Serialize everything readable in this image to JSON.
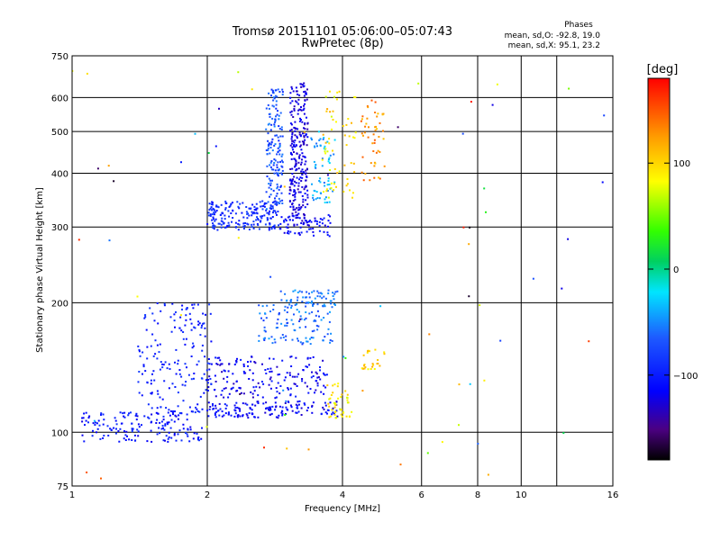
{
  "chart_data": {
    "type": "scatter",
    "title": "Tromsø 20151101 05:06:00–05:07:43",
    "subtitle": "RwPretec (8p)",
    "xlabel": "Frequency [MHz]",
    "ylabel": "Stationary phase Virtual Height [km]",
    "x_scale": "log",
    "y_scale": "log",
    "xlim": [
      1,
      16
    ],
    "ylim": [
      75,
      750
    ],
    "x_ticks": [
      1,
      2,
      4,
      6,
      8,
      10,
      16
    ],
    "x_grid_extra": [
      12
    ],
    "y_ticks": [
      75,
      100,
      200,
      300,
      400,
      500,
      600,
      750
    ],
    "grid": true,
    "stats": {
      "heading": "Phases",
      "line_o": "mean, sd,O:  -92.8, 19.0",
      "line_x": "mean, sd,X:   95.1, 23.2"
    },
    "colorbar": {
      "label": "[deg]",
      "min": -180,
      "max": 180,
      "ticks": [
        {
          "value": 100,
          "label": "100"
        },
        {
          "value": 0,
          "label": "0"
        },
        {
          "value": -100,
          "label": "−100"
        }
      ]
    },
    "point_clusters": [
      {
        "freq": [
          1.05,
          1.95
        ],
        "height": [
          95,
          112
        ],
        "phase": [
          -125,
          -85
        ],
        "n": 160
      },
      {
        "freq": [
          1.4,
          2.05
        ],
        "height": [
          110,
          200
        ],
        "phase": [
          -115,
          -80
        ],
        "n": 180
      },
      {
        "freq": [
          2.0,
          3.9
        ],
        "height": [
          108,
          118
        ],
        "phase": [
          -130,
          -95
        ],
        "n": 150
      },
      {
        "freq": [
          2.0,
          3.7
        ],
        "height": [
          120,
          150
        ],
        "phase": [
          -135,
          -95
        ],
        "n": 170
      },
      {
        "freq": [
          2.6,
          3.8
        ],
        "height": [
          160,
          200
        ],
        "phase": [
          -85,
          -40
        ],
        "n": 110
      },
      {
        "freq": [
          2.9,
          3.9
        ],
        "height": [
          196,
          215
        ],
        "phase": [
          -70,
          -40
        ],
        "n": 60
      },
      {
        "freq": [
          3.7,
          4.2
        ],
        "height": [
          108,
          130
        ],
        "phase": [
          70,
          110
        ],
        "n": 45
      },
      {
        "freq": [
          4.4,
          5.0
        ],
        "height": [
          140,
          160
        ],
        "phase": [
          80,
          120
        ],
        "n": 25
      },
      {
        "freq": [
          2.0,
          2.9
        ],
        "height": [
          295,
          345
        ],
        "phase": [
          -110,
          -75
        ],
        "n": 190
      },
      {
        "freq": [
          2.9,
          3.8
        ],
        "height": [
          285,
          320
        ],
        "phase": [
          -125,
          -95
        ],
        "n": 70
      },
      {
        "freq": [
          2.7,
          2.95
        ],
        "height": [
          330,
          640
        ],
        "phase": [
          -95,
          -50
        ],
        "n": 160
      },
      {
        "freq": [
          3.05,
          3.35
        ],
        "height": [
          300,
          650
        ],
        "phase": [
          -140,
          -110
        ],
        "n": 260
      },
      {
        "freq": [
          3.4,
          3.85
        ],
        "height": [
          340,
          500
        ],
        "phase": [
          -60,
          -20
        ],
        "n": 60
      },
      {
        "freq": [
          3.6,
          4.3
        ],
        "height": [
          350,
          620
        ],
        "phase": [
          70,
          120
        ],
        "n": 60
      },
      {
        "freq": [
          4.4,
          5.0
        ],
        "height": [
          380,
          620
        ],
        "phase": [
          100,
          150
        ],
        "n": 50
      },
      {
        "freq": [
          1.0,
          16.0
        ],
        "height": [
          75,
          700
        ],
        "phase": [
          -180,
          180
        ],
        "n": 70
      }
    ]
  }
}
